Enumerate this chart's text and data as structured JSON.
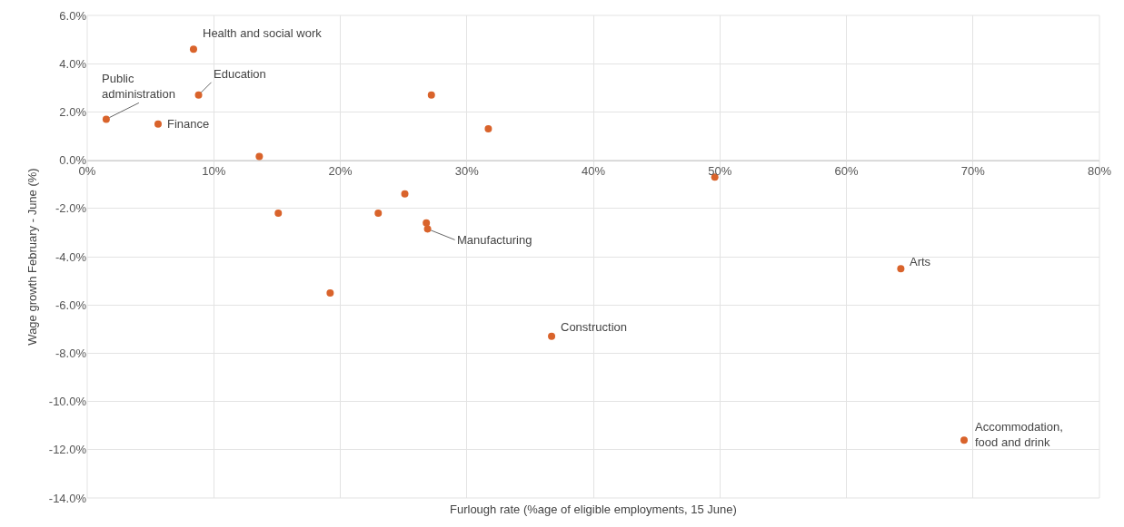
{
  "chart_data": {
    "type": "scatter",
    "xlabel": "Furlough rate (%age of eligible employments, 15 June)",
    "ylabel": "Wage growth February - June (%)",
    "x": [
      1.5,
      5.6,
      8.4,
      8.8,
      13.6,
      15.1,
      19.2,
      23.0,
      25.1,
      26.8,
      26.9,
      27.2,
      31.7,
      36.7,
      49.6,
      64.3,
      69.3
    ],
    "series": [
      {
        "color": "#d9632b",
        "values": [
          1.7,
          1.5,
          4.6,
          2.7,
          0.15,
          -2.2,
          -5.5,
          -2.2,
          -1.4,
          -2.6,
          -2.85,
          2.7,
          1.3,
          -7.3,
          -0.7,
          -4.5,
          -11.6
        ]
      }
    ],
    "marker": "circle",
    "grid": true,
    "xlim": [
      0,
      80
    ],
    "xticks": [
      {
        "value": 0,
        "label": "0%"
      },
      {
        "value": 10,
        "label": "10%"
      },
      {
        "value": 20,
        "label": "20%"
      },
      {
        "value": 30,
        "label": "30%"
      },
      {
        "value": 40,
        "label": "40%"
      },
      {
        "value": 50,
        "label": "50%"
      },
      {
        "value": 60,
        "label": "60%"
      },
      {
        "value": 70,
        "label": "70%"
      },
      {
        "value": 80,
        "label": "80%"
      }
    ],
    "ylim": [
      -14,
      6
    ],
    "yticks": [
      {
        "value": -14,
        "label": "-14.0%"
      },
      {
        "value": -12,
        "label": "-12.0%"
      },
      {
        "value": -10,
        "label": "-10.0%"
      },
      {
        "value": -8,
        "label": "-8.0%"
      },
      {
        "value": -6,
        "label": "-6.0%"
      },
      {
        "value": -4,
        "label": "-4.0%"
      },
      {
        "value": -2,
        "label": "-2.0%"
      },
      {
        "value": 0,
        "label": "0.0%"
      },
      {
        "value": 2,
        "label": "2.0%"
      },
      {
        "value": 4,
        "label": "4.0%"
      },
      {
        "value": 6,
        "label": "6.0%"
      }
    ],
    "annotations": [
      {
        "text": "Public\nadministration",
        "x": 1.5,
        "y": 1.7
      },
      {
        "text": "Finance",
        "x": 5.6,
        "y": 1.5
      },
      {
        "text": "Health and social work",
        "x": 8.4,
        "y": 4.6
      },
      {
        "text": "Education",
        "x": 8.8,
        "y": 2.7
      },
      {
        "text": "Manufacturing",
        "x": 26.9,
        "y": -2.85
      },
      {
        "text": "Construction",
        "x": 36.7,
        "y": -7.3
      },
      {
        "text": "Arts",
        "x": 64.3,
        "y": -4.5
      },
      {
        "text": "Accommodation,\nfood and drink",
        "x": 69.3,
        "y": -11.6
      }
    ]
  }
}
